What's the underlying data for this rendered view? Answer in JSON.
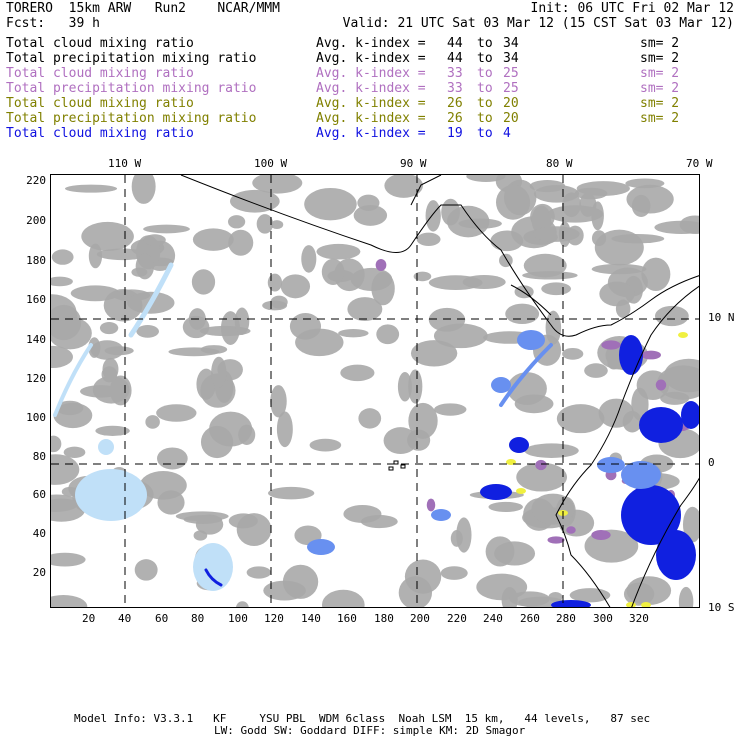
{
  "header": {
    "title_left": "TORERO  15km ARW   Run2    NCAR/MMM",
    "init": "Init: 06 UTC Fri 02 Mar 12",
    "fcst": "Fcst:   39 h",
    "valid": "Valid: 21 UTC Sat 03 Mar 12 (15 CST Sat 03 Mar 12)"
  },
  "legend": [
    {
      "field": "Total cloud mixing ratio",
      "k_label": "Avg. k-index =",
      "k_from": "44",
      "to": "to",
      "k_to": "34",
      "sm": "sm= 2",
      "color": "#000000"
    },
    {
      "field": "Total precipitation mixing ratio",
      "k_label": "Avg. k-index =",
      "k_from": "44",
      "to": "to",
      "k_to": "34",
      "sm": "sm= 2",
      "color": "#000000"
    },
    {
      "field": "Total cloud mixing ratio",
      "k_label": "Avg. k-index =",
      "k_from": "33",
      "to": "to",
      "k_to": "25",
      "sm": "sm= 2",
      "color": "#b070c0"
    },
    {
      "field": "Total precipitation mixing ratio",
      "k_label": "Avg. k-index =",
      "k_from": "33",
      "to": "to",
      "k_to": "25",
      "sm": "sm= 2",
      "color": "#b070c0"
    },
    {
      "field": "Total cloud mixing ratio",
      "k_label": "Avg. k-index =",
      "k_from": "26",
      "to": "to",
      "k_to": "20",
      "sm": "sm= 2",
      "color": "#808000"
    },
    {
      "field": "Total precipitation mixing ratio",
      "k_label": "Avg. k-index =",
      "k_from": "26",
      "to": "to",
      "k_to": "20",
      "sm": "sm= 2",
      "color": "#808000"
    },
    {
      "field": "Total cloud mixing ratio",
      "k_label": "Avg. k-index =",
      "k_from": "19",
      "to": "to",
      "k_to": "4",
      "sm": "",
      "color": "#1010e0"
    }
  ],
  "map": {
    "top_lon_labels": [
      "110 W",
      "100 W",
      "90 W",
      "80 W",
      "70 W"
    ],
    "right_lat_labels": [
      "10 N",
      "0",
      "10 S"
    ],
    "left_y_labels": [
      "220",
      "200",
      "180",
      "160",
      "140",
      "120",
      "100",
      "80",
      "60",
      "40",
      "20"
    ],
    "bottom_x_labels": [
      "20",
      "40",
      "60",
      "80",
      "100",
      "120",
      "140",
      "160",
      "180",
      "200",
      "220",
      "240",
      "260",
      "280",
      "300",
      "320"
    ],
    "colors": {
      "cloud_gray": "#a8a8a8",
      "purple": "#a070b8",
      "yellow": "#f0f040",
      "light_blue": "#c0e0f8",
      "mid_blue": "#6890f0",
      "deep_blue": "#1020e0"
    }
  },
  "footer": {
    "line1": "Model Info: V3.3.1   KF     YSU PBL  WDM 6class  Noah LSM  15 km,   44 levels,   87 sec",
    "line2": "LW: Godd SW: Goddard DIFF: simple KM: 2D Smagor"
  }
}
